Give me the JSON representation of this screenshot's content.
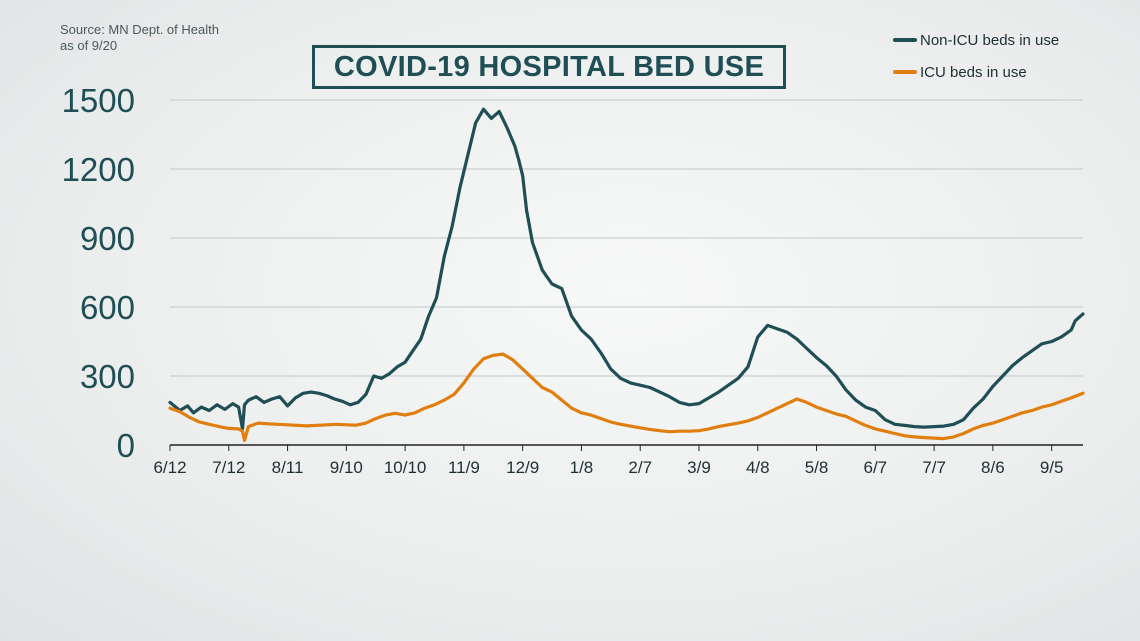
{
  "source": {
    "line1": "Source: MN Dept. of Health",
    "line2": "as of 9/20"
  },
  "title": "COVID-19 HOSPITAL BED USE",
  "colors": {
    "non_icu": "#1f4e55",
    "icu": "#e07f0f",
    "grid": "#c2c8c9",
    "axis": "#222222"
  },
  "chart_data": {
    "type": "line",
    "title": "COVID-19 HOSPITAL BED USE",
    "xlabel": "",
    "ylabel": "",
    "ylim": [
      0,
      1500
    ],
    "yticks": [
      1500,
      1200,
      900,
      600,
      300,
      0
    ],
    "x_tick_labels": [
      "6/12",
      "7/12",
      "8/11",
      "9/10",
      "10/10",
      "11/9",
      "12/9",
      "1/8",
      "2/7",
      "3/9",
      "4/8",
      "5/8",
      "6/7",
      "7/7",
      "8/6",
      "9/5"
    ],
    "x_unit": "days since 6/12",
    "x_tick_values": [
      0,
      30,
      60,
      90,
      120,
      150,
      180,
      210,
      240,
      270,
      300,
      330,
      360,
      390,
      420,
      450
    ],
    "xlim": [
      0,
      466
    ],
    "grid": "horizontal",
    "legend_position": "top-right",
    "series": [
      {
        "name": "Non-ICU beds in use",
        "color": "#1f4e55",
        "x": [
          0,
          5,
          9,
          12,
          16,
          20,
          24,
          28,
          32,
          35,
          37,
          38,
          40,
          44,
          48,
          52,
          56,
          60,
          64,
          68,
          72,
          76,
          80,
          84,
          88,
          92,
          96,
          100,
          104,
          108,
          112,
          116,
          120,
          124,
          128,
          132,
          136,
          140,
          144,
          148,
          152,
          156,
          160,
          164,
          168,
          172,
          176,
          178,
          180,
          182,
          185,
          190,
          195,
          200,
          205,
          210,
          215,
          220,
          225,
          230,
          235,
          240,
          245,
          250,
          255,
          260,
          265,
          270,
          275,
          280,
          285,
          290,
          295,
          300,
          305,
          310,
          315,
          320,
          325,
          330,
          335,
          340,
          345,
          350,
          355,
          360,
          365,
          370,
          375,
          380,
          385,
          390,
          395,
          400,
          405,
          410,
          415,
          420,
          425,
          430,
          435,
          440,
          445,
          450,
          455,
          460,
          462,
          466
        ],
        "y": [
          185,
          150,
          170,
          140,
          165,
          150,
          175,
          155,
          180,
          165,
          70,
          175,
          195,
          210,
          185,
          200,
          210,
          170,
          205,
          225,
          230,
          225,
          215,
          200,
          190,
          175,
          185,
          220,
          300,
          290,
          310,
          340,
          360,
          410,
          460,
          560,
          640,
          820,
          950,
          1120,
          1260,
          1400,
          1460,
          1420,
          1450,
          1380,
          1300,
          1240,
          1170,
          1020,
          880,
          760,
          700,
          680,
          560,
          500,
          460,
          400,
          330,
          290,
          270,
          260,
          250,
          230,
          210,
          185,
          175,
          180,
          205,
          230,
          260,
          290,
          340,
          470,
          520,
          505,
          490,
          460,
          420,
          380,
          345,
          300,
          240,
          195,
          165,
          150,
          110,
          90,
          85,
          80,
          78,
          80,
          82,
          90,
          110,
          160,
          200,
          255,
          300,
          345,
          380,
          410,
          440,
          450,
          470,
          500,
          540,
          570
        ]
      },
      {
        "name": "ICU beds in use",
        "color": "#e07f0f",
        "x": [
          0,
          5,
          10,
          15,
          20,
          25,
          30,
          35,
          37,
          38,
          40,
          45,
          50,
          55,
          60,
          65,
          70,
          75,
          80,
          85,
          90,
          95,
          100,
          105,
          110,
          115,
          120,
          125,
          130,
          135,
          140,
          145,
          150,
          155,
          160,
          165,
          170,
          175,
          180,
          185,
          190,
          195,
          200,
          205,
          210,
          215,
          220,
          225,
          230,
          235,
          240,
          245,
          250,
          255,
          260,
          265,
          270,
          275,
          280,
          285,
          290,
          295,
          300,
          305,
          310,
          315,
          320,
          325,
          330,
          335,
          340,
          345,
          350,
          355,
          360,
          365,
          370,
          375,
          380,
          385,
          390,
          395,
          400,
          405,
          410,
          415,
          420,
          425,
          430,
          435,
          440,
          445,
          450,
          455,
          460,
          466
        ],
        "y": [
          160,
          145,
          120,
          100,
          90,
          80,
          72,
          70,
          60,
          20,
          80,
          95,
          92,
          90,
          88,
          85,
          83,
          85,
          88,
          90,
          88,
          86,
          95,
          115,
          130,
          138,
          130,
          140,
          160,
          175,
          195,
          220,
          270,
          330,
          375,
          390,
          395,
          370,
          330,
          290,
          250,
          230,
          195,
          160,
          140,
          130,
          115,
          100,
          90,
          82,
          75,
          68,
          62,
          58,
          60,
          60,
          62,
          70,
          80,
          88,
          95,
          105,
          120,
          140,
          160,
          180,
          200,
          185,
          165,
          150,
          135,
          125,
          105,
          85,
          70,
          60,
          50,
          40,
          35,
          32,
          30,
          28,
          35,
          50,
          70,
          85,
          95,
          110,
          125,
          140,
          150,
          165,
          175,
          190,
          205,
          225
        ]
      }
    ]
  }
}
